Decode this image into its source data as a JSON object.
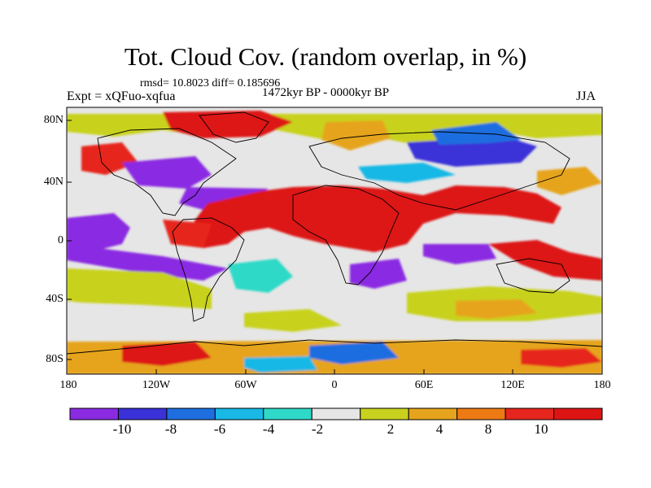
{
  "title": "Tot. Cloud Cov. (random overlap, in %)",
  "stats": "rmsd= 10.8023 diff= 0.185696",
  "period": "1472kyr BP - 0000kyr BP",
  "experiment": "Expt = xQFuo-xqfua",
  "season": "JJA",
  "lat_ticks": [
    "80N",
    "40N",
    "0",
    "40S",
    "80S"
  ],
  "lon_ticks": [
    "180",
    "120W",
    "60W",
    "0",
    "60E",
    "120E",
    "180"
  ],
  "colorbar": {
    "labels": [
      "-10",
      "-8",
      "-6",
      "-4",
      "-2",
      "2",
      "4",
      "8",
      "10"
    ],
    "colors": [
      "#8a2be2",
      "#3a32d8",
      "#1e6ee0",
      "#19b8e6",
      "#2fd9c8",
      "#e6e6e6",
      "#c8d21e",
      "#e6a41e",
      "#ee7a14",
      "#e6261e",
      "#dd1414"
    ]
  }
}
